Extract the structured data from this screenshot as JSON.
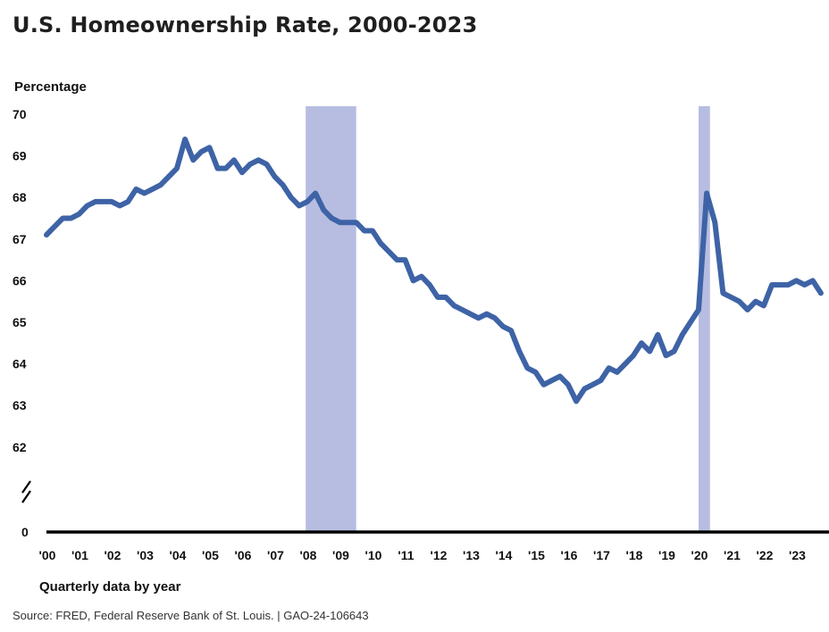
{
  "colors": {
    "line": "#3e63a6",
    "recession": "#b7bde0",
    "axis": "#000000"
  },
  "chart_data": {
    "type": "line",
    "title": "U.S. Homeownership Rate, 2000-2023",
    "ylabel": "Percentage",
    "xlabel": "Quarterly data by year",
    "source": "Source: FRED, Federal Reserve Bank of St. Louis.  |  GAO-24-106643",
    "ylim": [
      62,
      70
    ],
    "y_ticks": [
      "70",
      "69",
      "68",
      "67",
      "66",
      "65",
      "64",
      "63",
      "62"
    ],
    "y_zero_label": "0",
    "axis_break": true,
    "x_tick_labels": [
      "'00",
      "'01",
      "'02",
      "'03",
      "'04",
      "'05",
      "'06",
      "'07",
      "'08",
      "'09",
      "'10",
      "'11",
      "'12",
      "'13",
      "'14",
      "'15",
      "'16",
      "'17",
      "'18",
      "'19",
      "'20",
      "'21",
      "'22",
      "'23"
    ],
    "recessions": [
      {
        "start": 2007.95,
        "end": 2009.5
      },
      {
        "start": 2020.0,
        "end": 2020.35
      }
    ],
    "series": [
      {
        "name": "Homeownership rate",
        "x_start": 2000.0,
        "x_step": 0.25,
        "values": [
          67.1,
          67.3,
          67.5,
          67.5,
          67.6,
          67.8,
          67.9,
          67.9,
          67.9,
          67.8,
          67.9,
          68.2,
          68.1,
          68.2,
          68.3,
          68.5,
          68.7,
          69.4,
          68.9,
          69.1,
          69.2,
          68.7,
          68.7,
          68.9,
          68.6,
          68.8,
          68.9,
          68.8,
          68.5,
          68.3,
          68.0,
          67.8,
          67.9,
          68.1,
          67.7,
          67.5,
          67.4,
          67.4,
          67.4,
          67.2,
          67.2,
          66.9,
          66.7,
          66.5,
          66.5,
          66.0,
          66.1,
          65.9,
          65.6,
          65.6,
          65.4,
          65.3,
          65.2,
          65.1,
          65.2,
          65.1,
          64.9,
          64.8,
          64.3,
          63.9,
          63.8,
          63.5,
          63.6,
          63.7,
          63.5,
          63.1,
          63.4,
          63.5,
          63.6,
          63.9,
          63.8,
          64.0,
          64.2,
          64.5,
          64.3,
          64.7,
          64.2,
          64.3,
          64.7,
          65.0,
          65.3,
          68.1,
          67.4,
          65.7,
          65.6,
          65.5,
          65.3,
          65.5,
          65.4,
          65.9,
          65.9,
          65.9,
          66.0,
          65.9,
          66.0,
          65.7
        ]
      }
    ]
  }
}
